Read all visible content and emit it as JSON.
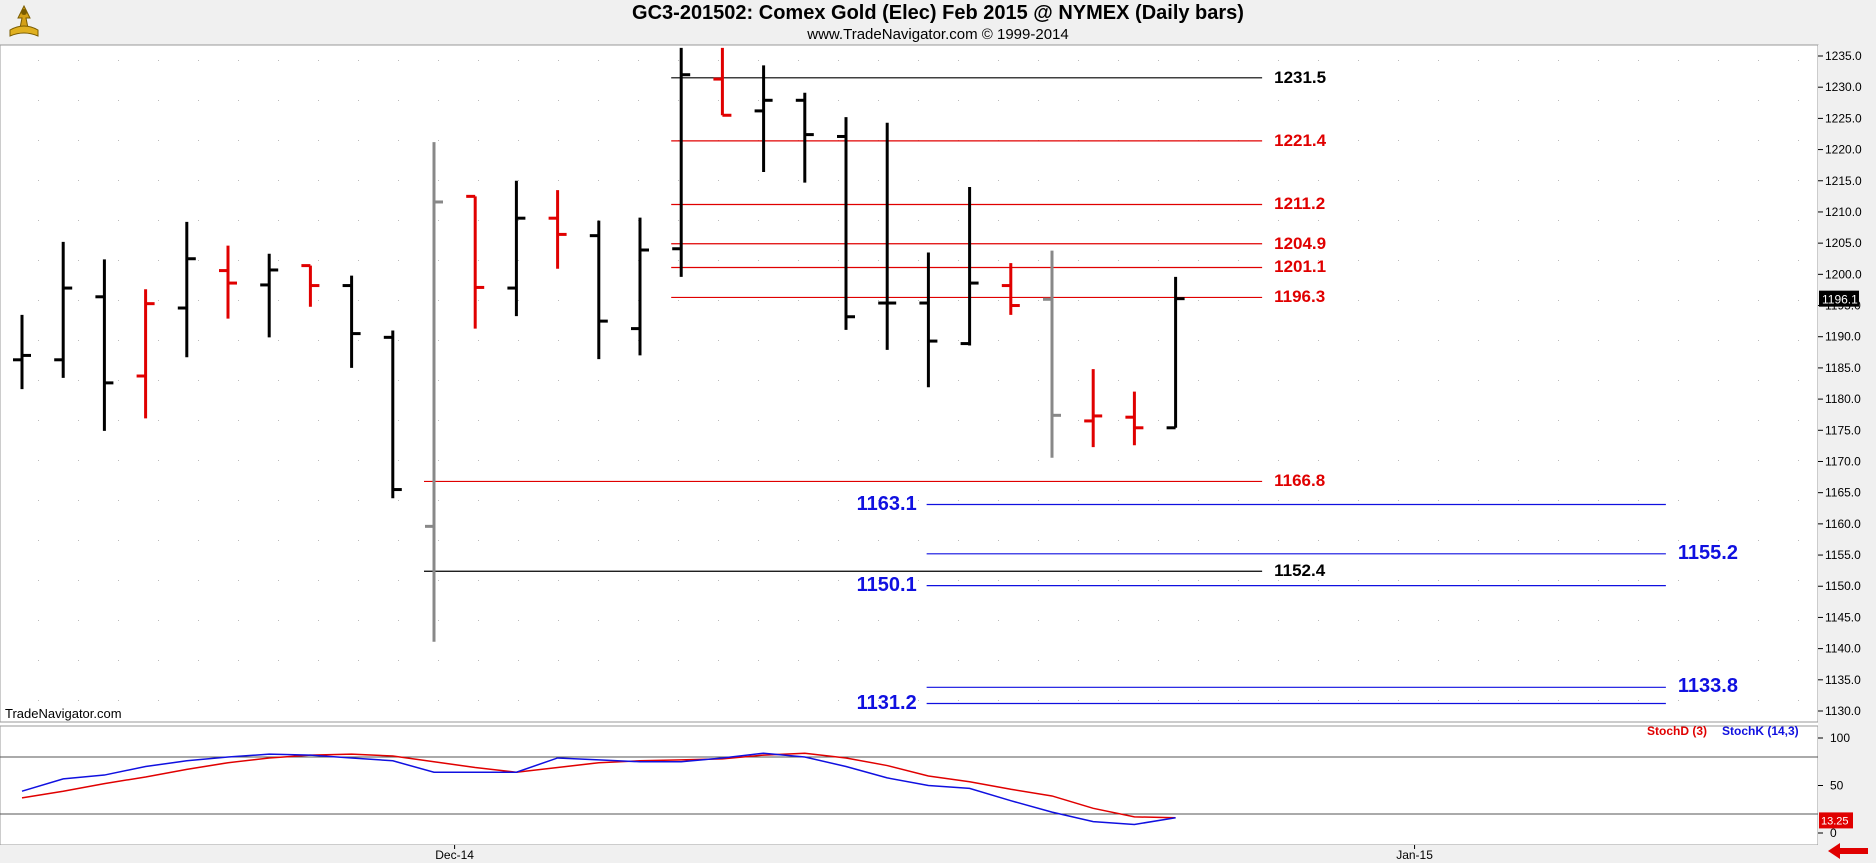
{
  "header": {
    "title": "GC3-201502:  Comex Gold (Elec) Feb 2015 @ NYMEX  (Daily bars)",
    "subtitle": "www.TradeNavigator.com © 1999-2014"
  },
  "watermark": "TradeNavigator.com",
  "colors": {
    "up_bar": "#000000",
    "down_bar": "#e00000",
    "gray_bar": "#888888",
    "level_red": "#e00000",
    "level_black": "#000000",
    "level_blue": "#1010e0",
    "stoch_d": "#e00000",
    "stoch_k": "#1010e0"
  },
  "chart_data": [
    {
      "type": "ohlc",
      "title": "GC3-201502:  Comex Gold (Elec) Feb 2015 @ NYMEX  (Daily bars)",
      "y_ticks": [
        "1235.0",
        "1230.0",
        "1225.0",
        "1220.0",
        "1215.0",
        "1210.0",
        "1205.0",
        "1200.0",
        "1195.0",
        "1190.0",
        "1185.0",
        "1180.0",
        "1175.0",
        "1170.0",
        "1165.0",
        "1160.0",
        "1155.0",
        "1150.0",
        "1145.0",
        "1140.0",
        "1135.0",
        "1130.0"
      ],
      "ylim": [
        1128.2,
        1236.3
      ],
      "x_labels": [
        {
          "label": "Dec-14",
          "bar": 10.5
        },
        {
          "label": "Jan-15",
          "bar": 33.8
        }
      ],
      "last_price": "1196.1",
      "bars": [
        {
          "o": 1186.3,
          "h": 1193.5,
          "l": 1181.6,
          "c": 1187.0,
          "color": "black"
        },
        {
          "o": 1186.3,
          "h": 1205.2,
          "l": 1183.4,
          "c": 1197.8,
          "color": "black"
        },
        {
          "o": 1196.4,
          "h": 1202.4,
          "l": 1174.9,
          "c": 1182.6,
          "color": "black"
        },
        {
          "o": 1183.7,
          "h": 1197.6,
          "l": 1176.9,
          "c": 1195.3,
          "color": "red"
        },
        {
          "o": 1194.6,
          "h": 1208.4,
          "l": 1186.7,
          "c": 1202.5,
          "color": "black"
        },
        {
          "o": 1200.6,
          "h": 1204.6,
          "l": 1192.9,
          "c": 1198.6,
          "color": "red"
        },
        {
          "o": 1198.3,
          "h": 1203.3,
          "l": 1189.9,
          "c": 1200.7,
          "color": "black"
        },
        {
          "o": 1201.4,
          "h": 1201.4,
          "l": 1194.8,
          "c": 1198.2,
          "color": "red"
        },
        {
          "o": 1198.2,
          "h": 1199.8,
          "l": 1185.0,
          "c": 1190.5,
          "color": "black"
        },
        {
          "o": 1189.9,
          "h": 1191.0,
          "l": 1164.1,
          "c": 1165.5,
          "color": "black"
        },
        {
          "o": 1159.6,
          "h": 1221.2,
          "l": 1141.1,
          "c": 1211.6,
          "color": "gray"
        },
        {
          "o": 1212.5,
          "h": 1212.5,
          "l": 1191.3,
          "c": 1197.9,
          "color": "red"
        },
        {
          "o": 1197.8,
          "h": 1215.0,
          "l": 1193.3,
          "c": 1209.0,
          "color": "black"
        },
        {
          "o": 1209.0,
          "h": 1213.5,
          "l": 1200.9,
          "c": 1206.4,
          "color": "red"
        },
        {
          "o": 1206.2,
          "h": 1208.6,
          "l": 1186.4,
          "c": 1192.5,
          "color": "black"
        },
        {
          "o": 1191.3,
          "h": 1209.1,
          "l": 1187.0,
          "c": 1203.9,
          "color": "black"
        },
        {
          "o": 1204.1,
          "h": 1236.3,
          "l": 1199.6,
          "c": 1232.0,
          "color": "black"
        },
        {
          "o": 1231.3,
          "h": 1236.3,
          "l": 1225.5,
          "c": 1225.5,
          "color": "red"
        },
        {
          "o": 1226.2,
          "h": 1233.5,
          "l": 1216.4,
          "c": 1227.9,
          "color": "black"
        },
        {
          "o": 1227.9,
          "h": 1229.1,
          "l": 1214.7,
          "c": 1222.4,
          "color": "black"
        },
        {
          "o": 1222.1,
          "h": 1225.2,
          "l": 1191.1,
          "c": 1193.2,
          "color": "black"
        },
        {
          "o": 1195.4,
          "h": 1224.3,
          "l": 1187.9,
          "c": 1195.4,
          "color": "black"
        },
        {
          "o": 1195.4,
          "h": 1203.5,
          "l": 1181.9,
          "c": 1189.3,
          "color": "black"
        },
        {
          "o": 1188.9,
          "h": 1214.0,
          "l": 1188.6,
          "c": 1198.6,
          "color": "black"
        },
        {
          "o": 1198.2,
          "h": 1201.8,
          "l": 1193.5,
          "c": 1195.0,
          "color": "red"
        },
        {
          "o": 1196.0,
          "h": 1203.8,
          "l": 1170.6,
          "c": 1177.4,
          "color": "gray"
        },
        {
          "o": 1176.5,
          "h": 1184.8,
          "l": 1172.3,
          "c": 1177.3,
          "color": "red"
        },
        {
          "o": 1177.1,
          "h": 1181.2,
          "l": 1172.6,
          "c": 1175.4,
          "color": "red"
        },
        {
          "o": 1175.4,
          "h": 1199.6,
          "l": 1175.4,
          "c": 1196.1,
          "color": "black"
        }
      ],
      "levels": [
        {
          "value": 1231.5,
          "label": "1231.5",
          "color": "black",
          "from_bar": 16,
          "to_bar": 30.1,
          "label_side": "right"
        },
        {
          "value": 1221.4,
          "label": "1221.4",
          "color": "red",
          "from_bar": 16,
          "to_bar": 30.1,
          "label_side": "right"
        },
        {
          "value": 1211.2,
          "label": "1211.2",
          "color": "red",
          "from_bar": 16,
          "to_bar": 30.1,
          "label_side": "right"
        },
        {
          "value": 1204.9,
          "label": "1204.9",
          "color": "red",
          "from_bar": 16,
          "to_bar": 30.1,
          "label_side": "right"
        },
        {
          "value": 1201.1,
          "label": "1201.1",
          "color": "red",
          "from_bar": 16,
          "to_bar": 30.1,
          "label_side": "right"
        },
        {
          "value": 1196.3,
          "label": "1196.3",
          "color": "red",
          "from_bar": 16,
          "to_bar": 30.1,
          "label_side": "right"
        },
        {
          "value": 1166.8,
          "label": "1166.8",
          "color": "red",
          "from_bar": 10,
          "to_bar": 30.1,
          "label_side": "right"
        },
        {
          "value": 1152.4,
          "label": "1152.4",
          "color": "black",
          "from_bar": 10,
          "to_bar": 30.1,
          "label_side": "right"
        },
        {
          "value": 1163.1,
          "label": "1163.1",
          "color": "blue",
          "from_bar": 22.2,
          "to_bar": 39.9,
          "label_side": "left"
        },
        {
          "value": 1155.2,
          "label": "1155.2",
          "color": "blue",
          "from_bar": 22.2,
          "to_bar": 39.9,
          "label_side": "right"
        },
        {
          "value": 1150.1,
          "label": "1150.1",
          "color": "blue",
          "from_bar": 22.2,
          "to_bar": 39.9,
          "label_side": "left"
        },
        {
          "value": 1133.8,
          "label": "1133.8",
          "color": "blue",
          "from_bar": 22.2,
          "to_bar": 39.9,
          "label_side": "right"
        },
        {
          "value": 1131.2,
          "label": "1131.2",
          "color": "blue",
          "from_bar": 22.2,
          "to_bar": 39.9,
          "label_side": "left"
        }
      ]
    },
    {
      "type": "line",
      "title": "Stochastic",
      "ylim": [
        0,
        100
      ],
      "y_ticks": [
        "100",
        "50",
        "0"
      ],
      "reference_lines": [
        80,
        20
      ],
      "last_value": "13.25",
      "series": [
        {
          "name": "StochD (3)",
          "color": "red",
          "values": [
            37,
            44,
            52,
            59,
            67,
            74,
            79,
            82,
            83,
            81,
            75,
            69,
            64,
            69,
            74,
            76,
            77,
            78,
            82,
            84,
            79,
            71,
            60,
            54,
            46,
            39,
            26,
            17,
            16
          ]
        },
        {
          "name": "StochK (14,3)",
          "color": "blue",
          "values": [
            44,
            57,
            61,
            70,
            76,
            80,
            83,
            82,
            79,
            76,
            64,
            64,
            64,
            79,
            77,
            75,
            75,
            79,
            84,
            80,
            70,
            58,
            50,
            47,
            34,
            22,
            12,
            9,
            16
          ]
        }
      ]
    }
  ]
}
